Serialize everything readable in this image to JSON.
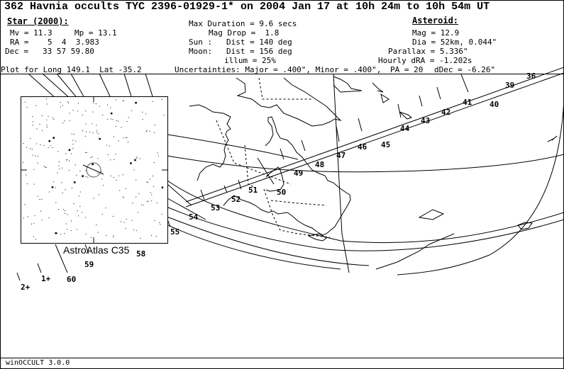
{
  "title": "362 Havnia occults TYC 2396-01929-1* on 2004 Jan 17 at 10h 24m to 10h 54m UT",
  "star": {
    "heading": "Star (2000):",
    "mv": "Mv = 11.3",
    "mp": "Mp = 13.1",
    "ra": "RA =    5  4  3.983",
    "dec": "Dec =   33 57 59.80"
  },
  "event": {
    "max_duration": "Max Duration = 9.6 secs",
    "mag_drop": "Mag Drop =  1.8",
    "sun": "Sun :   Dist = 140 deg",
    "moon": "Moon:   Dist = 156 deg",
    "illum": "illum = 25%"
  },
  "asteroid": {
    "heading": "Asteroid:",
    "mag": "Mag = 12.9",
    "dia": "Dia = 52km, 0.044\"",
    "parallax": "Parallax = 5.336\"",
    "hourly_dra": "Hourly dRA = -1.202s",
    "pa": "PA = 20",
    "ddec": "dDec = -6.26\""
  },
  "plot_for": "Plot for Long 149.1  Lat -35.2",
  "uncertainties": "Uncertainties: Major = .400\", Minor = .400\",",
  "star_chart_label": "AstroAtlas C35",
  "minute_labels": [
    "36",
    "39",
    "40",
    "41",
    "42",
    "43",
    "44",
    "45",
    "46",
    "47",
    "48",
    "49",
    "50",
    "51",
    "52",
    "53",
    "54",
    "55",
    "58",
    "59",
    "60",
    "1+",
    "2+"
  ],
  "footer": "winOCCULT 3.0.0"
}
